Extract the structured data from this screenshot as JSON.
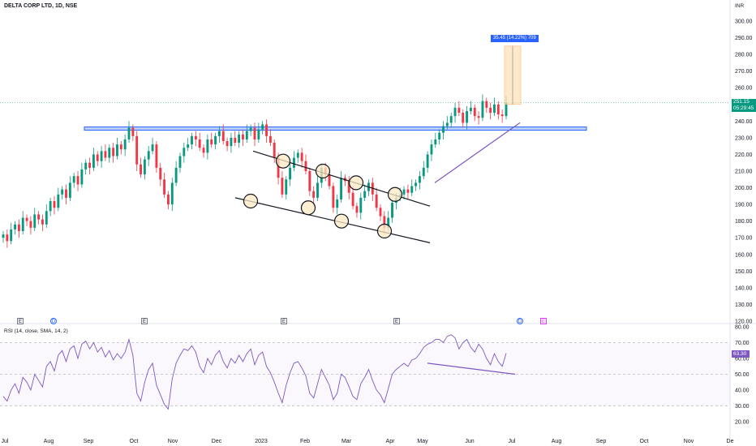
{
  "header": {
    "title": "DELTA CORP LTD, 1D, NSE"
  },
  "currency": "INR",
  "price_axis": {
    "ticks": [
      "300.00",
      "290.00",
      "280.00",
      "270.00",
      "260.00",
      "250.00",
      "240.00",
      "230.00",
      "220.00",
      "210.00",
      "200.00",
      "190.00",
      "180.00",
      "170.00",
      "160.00",
      "150.00",
      "140.00",
      "130.00",
      "120.00"
    ]
  },
  "last_price": {
    "value": "251.15",
    "countdown": "05:29:45"
  },
  "measure": {
    "label": "35.45 (14.22%) 709"
  },
  "rsi": {
    "label": "RSI (14, close, SMA, 14, 2)",
    "value": "63.30",
    "ticks": [
      "80.00",
      "70.00",
      "60.00",
      "50.00",
      "40.00",
      "30.00",
      "20.00"
    ]
  },
  "event_markers": [
    {
      "kind": "E",
      "style": "e"
    },
    {
      "kind": "D",
      "style": "d"
    },
    {
      "kind": "E",
      "style": "e"
    },
    {
      "kind": "E",
      "style": "e"
    },
    {
      "kind": "E",
      "style": "e"
    },
    {
      "kind": "D",
      "style": "d"
    },
    {
      "kind": "E",
      "style": "e2"
    }
  ],
  "time_axis": {
    "labels": [
      "Jul",
      "Aug",
      "Sep",
      "Oct",
      "Nov",
      "Dec",
      "2023",
      "Feb",
      "Mar",
      "Apr",
      "May",
      "Jun",
      "Jul",
      "Aug",
      "Sep",
      "Oct",
      "Nov",
      "De"
    ]
  },
  "colors": {
    "up": "#089981",
    "down": "#f23645",
    "support": "#2962ff",
    "channel": "#131722",
    "trend": "#7e57c2",
    "rsi": "#7e57c2",
    "circle_fill": "#fde9c4"
  },
  "chart_data": {
    "type": "candlestick",
    "title": "DELTA CORP LTD, 1D, NSE",
    "y_range": [
      120,
      300
    ],
    "closes": [
      172,
      168,
      175,
      178,
      174,
      182,
      180,
      176,
      184,
      181,
      178,
      186,
      192,
      188,
      196,
      199,
      194,
      203,
      207,
      202,
      211,
      215,
      212,
      220,
      216,
      222,
      218,
      224,
      219,
      226,
      223,
      229,
      236,
      231,
      214,
      208,
      217,
      222,
      226,
      212,
      205,
      196,
      190,
      203,
      212,
      219,
      224,
      226,
      231,
      229,
      224,
      221,
      229,
      226,
      231,
      234,
      228,
      225,
      230,
      227,
      232,
      229,
      234,
      236,
      229,
      235,
      238,
      231,
      227,
      218,
      206,
      196,
      205,
      212,
      218,
      221,
      216,
      210,
      198,
      194,
      203,
      212,
      208,
      201,
      188,
      193,
      206,
      204,
      197,
      189,
      185,
      194,
      198,
      203,
      196,
      188,
      183,
      176,
      182,
      191,
      194,
      196,
      199,
      197,
      201,
      203,
      207,
      212,
      220,
      226,
      229,
      233,
      237,
      239,
      243,
      248,
      245,
      239,
      246,
      248,
      243,
      242,
      252,
      248,
      245,
      250,
      244,
      243,
      251
    ],
    "support_level": 235.5,
    "rsi_range": [
      20,
      80
    ],
    "rsi_levels": [
      70,
      50,
      30
    ],
    "rsi_values": [
      36,
      33,
      40,
      44,
      38,
      48,
      45,
      40,
      50,
      46,
      42,
      55,
      58,
      52,
      62,
      65,
      58,
      66,
      68,
      60,
      69,
      71,
      66,
      70,
      64,
      67,
      61,
      65,
      59,
      63,
      60,
      64,
      72,
      62,
      38,
      33,
      45,
      53,
      57,
      43,
      37,
      31,
      28,
      47,
      57,
      62,
      66,
      65,
      68,
      64,
      55,
      51,
      60,
      56,
      62,
      65,
      58,
      54,
      60,
      57,
      62,
      58,
      63,
      66,
      56,
      62,
      64,
      55,
      51,
      45,
      38,
      32,
      43,
      51,
      57,
      58,
      54,
      49,
      38,
      35,
      44,
      53,
      48,
      43,
      34,
      38,
      50,
      48,
      42,
      36,
      34,
      44,
      48,
      53,
      46,
      40,
      37,
      32,
      41,
      50,
      53,
      55,
      57,
      55,
      59,
      60,
      63,
      67,
      69,
      70,
      72,
      72,
      70,
      74,
      75,
      73,
      66,
      70,
      72,
      67,
      64,
      69,
      66,
      60,
      56,
      63,
      58,
      55,
      63.3
    ]
  }
}
